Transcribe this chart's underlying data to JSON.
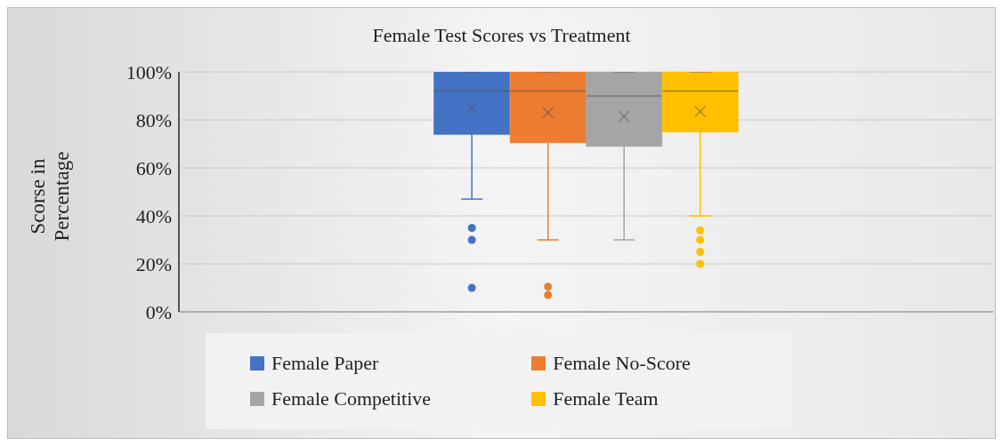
{
  "chart_data": {
    "type": "box",
    "title": "Female Test Scores vs Treatment",
    "ylabel": "Scorse in Percentage",
    "categories": [
      null
    ],
    "series": [
      {
        "name": "Female Paper",
        "color": "#4472c4",
        "boxes": [
          {
            "low": 47,
            "q1": 74,
            "median": 92,
            "q3": 100,
            "high": 100,
            "mean": 85,
            "outliers": [
              35,
              30,
              10
            ]
          }
        ]
      },
      {
        "name": "Female No-Score",
        "color": "#ed7d31",
        "boxes": [
          {
            "low": 30,
            "q1": 70.5,
            "median": 92,
            "q3": 100,
            "high": 100,
            "mean": 83,
            "outliers": [
              10.5,
              7
            ]
          }
        ]
      },
      {
        "name": "Female Competitive",
        "color": "#a5a5a5",
        "boxes": [
          {
            "low": 30,
            "q1": 69,
            "median": 90,
            "q3": 100,
            "high": 100,
            "mean": 81.5
          }
        ]
      },
      {
        "name": "Female Team",
        "color": "#ffc000",
        "boxes": [
          {
            "low": 40,
            "q1": 75,
            "median": 92,
            "q3": 100,
            "high": 100,
            "mean": 83.5,
            "outliers": [
              34,
              30,
              25,
              20
            ]
          }
        ]
      }
    ],
    "ylim": [
      0,
      100
    ],
    "yticks": [
      {
        "value": 0,
        "label": "0%"
      },
      {
        "value": 20,
        "label": "20%"
      },
      {
        "value": 40,
        "label": "40%"
      },
      {
        "value": 60,
        "label": "60%"
      },
      {
        "value": 80,
        "label": "80%"
      },
      {
        "value": 100,
        "label": "100%"
      }
    ],
    "grid": "y",
    "legend": "bottom",
    "tick_labels": "y"
  }
}
